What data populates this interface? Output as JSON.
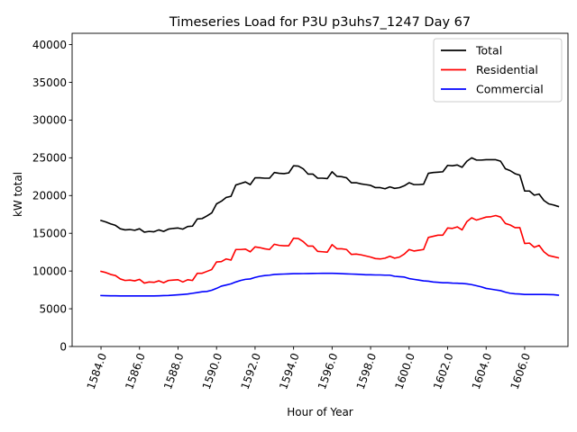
{
  "chart_data": {
    "type": "line",
    "title": "Timeseries Load for P3U p3uhs7_1247  Day 67",
    "xlabel": "Hour of Year",
    "ylabel": "kW total",
    "xlim": [
      1582.5,
      1608.25
    ],
    "ylim": [
      0,
      41500
    ],
    "xticks": [
      1584,
      1586,
      1588,
      1590,
      1592,
      1594,
      1596,
      1598,
      1600,
      1602,
      1604,
      1606
    ],
    "xtick_labels": [
      "1584.0",
      "1586.0",
      "1588.0",
      "1590.0",
      "1592.0",
      "1594.0",
      "1596.0",
      "1598.0",
      "1600.0",
      "1602.0",
      "1604.0",
      "1606.0"
    ],
    "yticks": [
      0,
      5000,
      10000,
      15000,
      20000,
      25000,
      30000,
      35000,
      40000
    ],
    "ytick_labels": [
      "0",
      "5000",
      "10000",
      "15000",
      "20000",
      "25000",
      "30000",
      "35000",
      "40000"
    ],
    "legend_position": "upper right",
    "x": [
      1584.0,
      1584.25,
      1584.5,
      1584.75,
      1585.0,
      1585.25,
      1585.5,
      1585.75,
      1586.0,
      1586.25,
      1586.5,
      1586.75,
      1587.0,
      1587.25,
      1587.5,
      1587.75,
      1588.0,
      1588.25,
      1588.5,
      1588.75,
      1589.0,
      1589.25,
      1589.5,
      1589.75,
      1590.0,
      1590.25,
      1590.5,
      1590.75,
      1591.0,
      1591.25,
      1591.5,
      1591.75,
      1592.0,
      1592.25,
      1592.5,
      1592.75,
      1593.0,
      1593.25,
      1593.5,
      1593.75,
      1594.0,
      1594.25,
      1594.5,
      1594.75,
      1595.0,
      1595.25,
      1595.5,
      1595.75,
      1596.0,
      1596.25,
      1596.5,
      1596.75,
      1597.0,
      1597.25,
      1597.5,
      1597.75,
      1598.0,
      1598.25,
      1598.5,
      1598.75,
      1599.0,
      1599.25,
      1599.5,
      1599.75,
      1600.0,
      1600.25,
      1600.5,
      1600.75,
      1601.0,
      1601.25,
      1601.5,
      1601.75,
      1602.0,
      1602.25,
      1602.5,
      1602.75,
      1603.0,
      1603.25,
      1603.5,
      1603.75,
      1604.0,
      1604.25,
      1604.5,
      1604.75,
      1605.0,
      1605.25,
      1605.5,
      1605.75,
      1606.0,
      1606.25,
      1606.5,
      1606.75,
      1607.0,
      1607.25,
      1607.5,
      1607.75
    ],
    "series": [
      {
        "name": "Total",
        "color": "#000000",
        "values": [
          16700,
          16500,
          16250,
          16050,
          15600,
          15450,
          15500,
          15400,
          15600,
          15150,
          15250,
          15200,
          15450,
          15250,
          15550,
          15650,
          15700,
          15550,
          15900,
          15950,
          16900,
          16950,
          17300,
          17700,
          18900,
          19250,
          19750,
          19900,
          21400,
          21600,
          21800,
          21450,
          22350,
          22350,
          22300,
          22300,
          23050,
          22950,
          22900,
          23000,
          23950,
          23900,
          23550,
          22850,
          22850,
          22300,
          22300,
          22250,
          23150,
          22550,
          22500,
          22350,
          21700,
          21700,
          21550,
          21450,
          21350,
          21050,
          21050,
          20900,
          21150,
          20950,
          21050,
          21300,
          21700,
          21450,
          21450,
          21500,
          22950,
          23050,
          23100,
          23150,
          24000,
          23950,
          24050,
          23750,
          24550,
          25000,
          24700,
          24700,
          24750,
          24750,
          24750,
          24550,
          23550,
          23300,
          22900,
          22700,
          20600,
          20600,
          20050,
          20200,
          19350,
          18900,
          18750,
          18550
        ]
      },
      {
        "name": "Residential",
        "color": "#ff0000",
        "values": [
          9950,
          9800,
          9550,
          9400,
          8950,
          8750,
          8800,
          8700,
          8900,
          8400,
          8550,
          8500,
          8700,
          8450,
          8750,
          8800,
          8850,
          8550,
          8850,
          8750,
          9700,
          9700,
          9950,
          10200,
          11200,
          11250,
          11600,
          11450,
          12850,
          12850,
          12900,
          12550,
          13200,
          13100,
          12950,
          12850,
          13550,
          13400,
          13350,
          13350,
          14350,
          14300,
          13900,
          13300,
          13300,
          12600,
          12550,
          12500,
          13500,
          12950,
          12950,
          12850,
          12200,
          12250,
          12150,
          12000,
          11850,
          11650,
          11600,
          11700,
          11950,
          11700,
          11850,
          12250,
          12850,
          12650,
          12750,
          12850,
          14450,
          14600,
          14750,
          14750,
          15700,
          15650,
          15850,
          15450,
          16550,
          17050,
          16750,
          16950,
          17150,
          17200,
          17350,
          17150,
          16300,
          16100,
          15750,
          15750,
          13650,
          13700,
          13150,
          13400,
          12550,
          12050,
          11900,
          11750
        ]
      },
      {
        "name": "Commercial",
        "color": "#0000ff",
        "values": [
          6750,
          6730,
          6720,
          6710,
          6700,
          6700,
          6700,
          6700,
          6700,
          6700,
          6700,
          6700,
          6720,
          6740,
          6760,
          6800,
          6850,
          6900,
          6950,
          7050,
          7150,
          7250,
          7300,
          7450,
          7700,
          8000,
          8150,
          8300,
          8550,
          8750,
          8900,
          8950,
          9150,
          9300,
          9400,
          9450,
          9550,
          9580,
          9600,
          9620,
          9650,
          9650,
          9660,
          9670,
          9680,
          9690,
          9700,
          9700,
          9700,
          9680,
          9650,
          9620,
          9600,
          9580,
          9550,
          9500,
          9500,
          9480,
          9480,
          9450,
          9450,
          9300,
          9250,
          9200,
          9000,
          8900,
          8800,
          8700,
          8650,
          8550,
          8500,
          8450,
          8450,
          8400,
          8380,
          8350,
          8300,
          8200,
          8050,
          7900,
          7700,
          7600,
          7500,
          7400,
          7200,
          7050,
          6980,
          6950,
          6900,
          6900,
          6900,
          6900,
          6900,
          6880,
          6860,
          6800
        ]
      }
    ]
  }
}
